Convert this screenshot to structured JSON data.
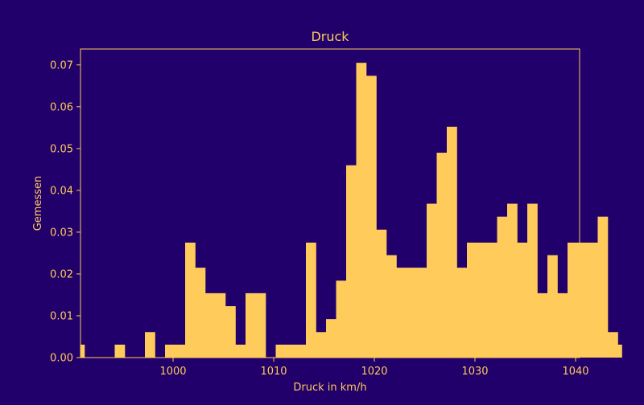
{
  "colors": {
    "background": "#22006b",
    "foreground": "#ffcb5b",
    "bar": "#ffcb5b"
  },
  "chart_data": {
    "type": "bar",
    "title": "Druck",
    "xlabel": "Druck in km/h",
    "ylabel": "Gemessen",
    "xlim": [
      990.8,
      1040.4
    ],
    "ylim": [
      0,
      0.0738
    ],
    "bin_start": 990.8,
    "bin_width": 1.0,
    "x_ticks": [
      1000,
      1010,
      1020,
      1030,
      1040
    ],
    "y_ticks": [
      0.0,
      0.01,
      0.02,
      0.03,
      0.04,
      0.05,
      0.06,
      0.07
    ],
    "y_tick_labels": [
      "0.00",
      "0.01",
      "0.02",
      "0.03",
      "0.04",
      "0.05",
      "0.06",
      "0.07"
    ],
    "x_tick_labels": [
      "1000",
      "1010",
      "1020",
      "1030",
      "1040"
    ],
    "grid": false,
    "values": [
      0.0031,
      0,
      0,
      0,
      0.0031,
      0,
      0,
      0.0061,
      0,
      0.0031,
      0.0031,
      0.0275,
      0.0215,
      0.0154,
      0.0154,
      0.0123,
      0.0031,
      0.0154,
      0.0154,
      0,
      0.0031,
      0.0031,
      0.0031,
      0.0275,
      0.0061,
      0.0092,
      0.0184,
      0.046,
      0.0705,
      0.0674,
      0.0306,
      0.0245,
      0.0215,
      0.0215,
      0.0215,
      0.0368,
      0.049,
      0.0552,
      0.0215,
      0.0275,
      0.0275,
      0.0275,
      0.0337,
      0.0368,
      0.0275,
      0.0368,
      0.0154,
      0.0245,
      0.0154,
      0.0275,
      0.0275,
      0.0275,
      0.0337,
      0.0061,
      0.0031
    ],
    "bar_widths_bins": [
      0.4,
      1,
      1,
      1,
      1,
      1,
      1,
      1,
      1,
      1,
      1,
      1,
      1,
      1,
      1,
      1,
      1,
      1,
      1,
      1,
      1,
      1,
      1,
      1,
      1,
      1,
      1,
      1,
      1,
      1,
      1,
      1,
      1,
      1,
      1,
      1,
      1,
      1,
      1,
      1,
      1,
      1,
      1,
      1,
      1,
      1,
      1,
      1,
      1,
      1,
      1,
      1,
      1,
      1,
      0.4
    ]
  }
}
